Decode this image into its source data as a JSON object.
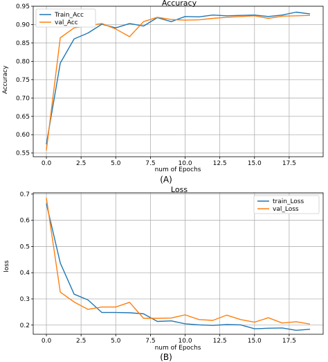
{
  "chart_data": [
    {
      "type": "line",
      "title": "Accuracy",
      "xlabel": "num of Epochs",
      "ylabel": "Accuracy",
      "panel_label": "(A)",
      "grid": true,
      "legend_position": "top-left",
      "xlim": [
        -0.95,
        19.95
      ],
      "ylim": [
        0.54,
        0.95
      ],
      "xticks": [
        0,
        2.5,
        5,
        7.5,
        10,
        12.5,
        15,
        17.5
      ],
      "xtick_labels": [
        "0.0",
        "2.5",
        "5.0",
        "7.5",
        "10.0",
        "12.5",
        "15.0",
        "17.5"
      ],
      "yticks": [
        0.55,
        0.6,
        0.65,
        0.7,
        0.75,
        0.8,
        0.85,
        0.9,
        0.95
      ],
      "ytick_labels": [
        "0.55",
        "0.60",
        "0.65",
        "0.70",
        "0.75",
        "0.80",
        "0.85",
        "0.90",
        "0.95"
      ],
      "x": [
        0,
        1,
        2,
        3,
        4,
        5,
        6,
        7,
        8,
        9,
        10,
        11,
        12,
        13,
        14,
        15,
        16,
        17,
        18,
        19
      ],
      "series": [
        {
          "name": "Train_Acc",
          "color": "#1f77b4",
          "values": [
            0.574,
            0.795,
            0.861,
            0.877,
            0.901,
            0.891,
            0.903,
            0.896,
            0.919,
            0.908,
            0.922,
            0.921,
            0.926,
            0.924,
            0.925,
            0.926,
            0.922,
            0.926,
            0.934,
            0.929
          ]
        },
        {
          "name": "val_Acc",
          "color": "#ff7f0e",
          "values": [
            0.557,
            0.864,
            0.891,
            0.897,
            0.903,
            0.888,
            0.867,
            0.908,
            0.92,
            0.914,
            0.912,
            0.913,
            0.917,
            0.92,
            0.922,
            0.924,
            0.917,
            0.923,
            0.924,
            0.925
          ]
        }
      ]
    },
    {
      "type": "line",
      "title": "Loss",
      "xlabel": "num of Epochs",
      "ylabel": "loss",
      "panel_label": "(B)",
      "grid": true,
      "legend_position": "top-right",
      "xlim": [
        -0.95,
        19.95
      ],
      "ylim": [
        0.165,
        0.705
      ],
      "xticks": [
        0,
        2.5,
        5,
        7.5,
        10,
        12.5,
        15,
        17.5
      ],
      "xtick_labels": [
        "0.0",
        "2.5",
        "5.0",
        "7.5",
        "10.0",
        "12.5",
        "15.0",
        "17.5"
      ],
      "yticks": [
        0.2,
        0.3,
        0.4,
        0.5,
        0.6,
        0.7
      ],
      "ytick_labels": [
        "0.2",
        "0.3",
        "0.4",
        "0.5",
        "0.6",
        "0.7"
      ],
      "x": [
        0,
        1,
        2,
        3,
        4,
        5,
        6,
        7,
        8,
        9,
        10,
        11,
        12,
        13,
        14,
        15,
        16,
        17,
        18,
        19
      ],
      "series": [
        {
          "name": "train_Loss",
          "color": "#1f77b4",
          "values": [
            0.664,
            0.437,
            0.318,
            0.296,
            0.248,
            0.248,
            0.247,
            0.243,
            0.214,
            0.216,
            0.205,
            0.201,
            0.199,
            0.202,
            0.201,
            0.186,
            0.188,
            0.189,
            0.18,
            0.184
          ]
        },
        {
          "name": "val_Loss",
          "color": "#ff7f0e",
          "values": [
            0.686,
            0.326,
            0.288,
            0.26,
            0.269,
            0.269,
            0.287,
            0.226,
            0.226,
            0.227,
            0.239,
            0.221,
            0.218,
            0.238,
            0.221,
            0.211,
            0.228,
            0.208,
            0.213,
            0.204
          ]
        }
      ]
    }
  ]
}
